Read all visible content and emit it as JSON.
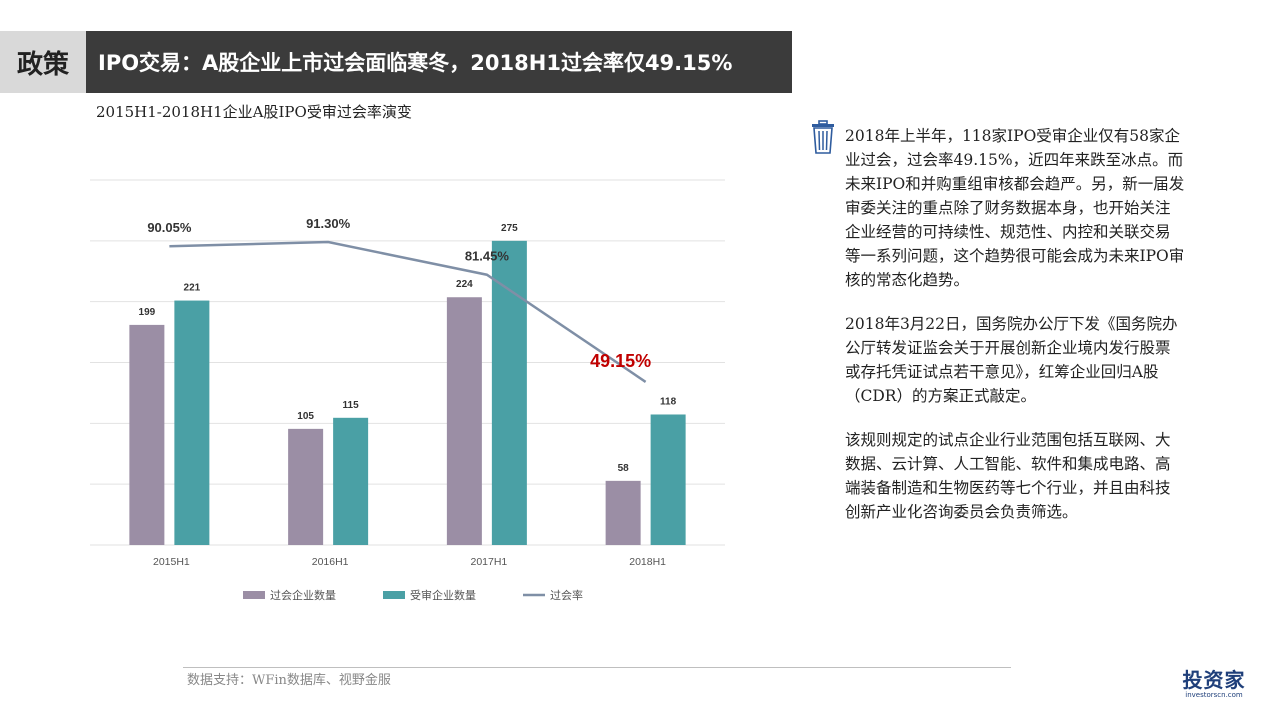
{
  "header": {
    "tag": "政策",
    "title": "IPO交易：A股企业上市过会面临寒冬，2018H1过会率仅49.15%"
  },
  "chart_title": "2015H1-2018H1企业A股IPO受审过会率演变",
  "chart_data": {
    "type": "bar",
    "categories": [
      "2015H1",
      "2016H1",
      "2017H1",
      "2018H1"
    ],
    "series": [
      {
        "name": "过会企业数量",
        "type": "bar",
        "values": [
          199,
          105,
          224,
          58
        ],
        "color": "#9b8ea5"
      },
      {
        "name": "受审企业数量",
        "type": "bar",
        "values": [
          221,
          115,
          275,
          118
        ],
        "color": "#4aa0a5"
      },
      {
        "name": "过会率",
        "type": "line",
        "values": [
          90.05,
          91.3,
          81.45,
          49.15
        ],
        "labels": [
          "90.05%",
          "91.30%",
          "81.45%",
          "49.15%"
        ],
        "color": "#7f8fa6"
      }
    ],
    "ylim": [
      0,
      330
    ],
    "line_ylim": [
      0,
      110
    ],
    "highlight_color": "#c00000",
    "grid": true,
    "legend": "bottom"
  },
  "paragraphs": [
    "2018年上半年，118家IPO受审企业仅有58家企业过会，过会率49.15%，近四年来跌至冰点。而未来IPO和并购重组审核都会趋严。另，新一届发审委关注的重点除了财务数据本身，也开始关注企业经营的可持续性、规范性、内控和关联交易等一系列问题，这个趋势很可能会成为未来IPO审核的常态化趋势。",
    "2018年3月22日，国务院办公厅下发《国务院办公厅转发证监会关于开展创新企业境内发行股票或存托凭证试点若干意见》，红筹企业回归A股（CDR）的方案正式敲定。",
    "该规则规定的试点企业行业范围包括互联网、大数据、云计算、人工智能、软件和集成电路、高端装备制造和生物医药等七个行业，并且由科技创新产业化咨询委员会负责筛选。"
  ],
  "footer": {
    "source": "数据支持：WFin数据库、视野金服",
    "logo_text": "投资家",
    "logo_sub": "investorscn.com"
  },
  "icons": {
    "note": "trash-icon"
  }
}
